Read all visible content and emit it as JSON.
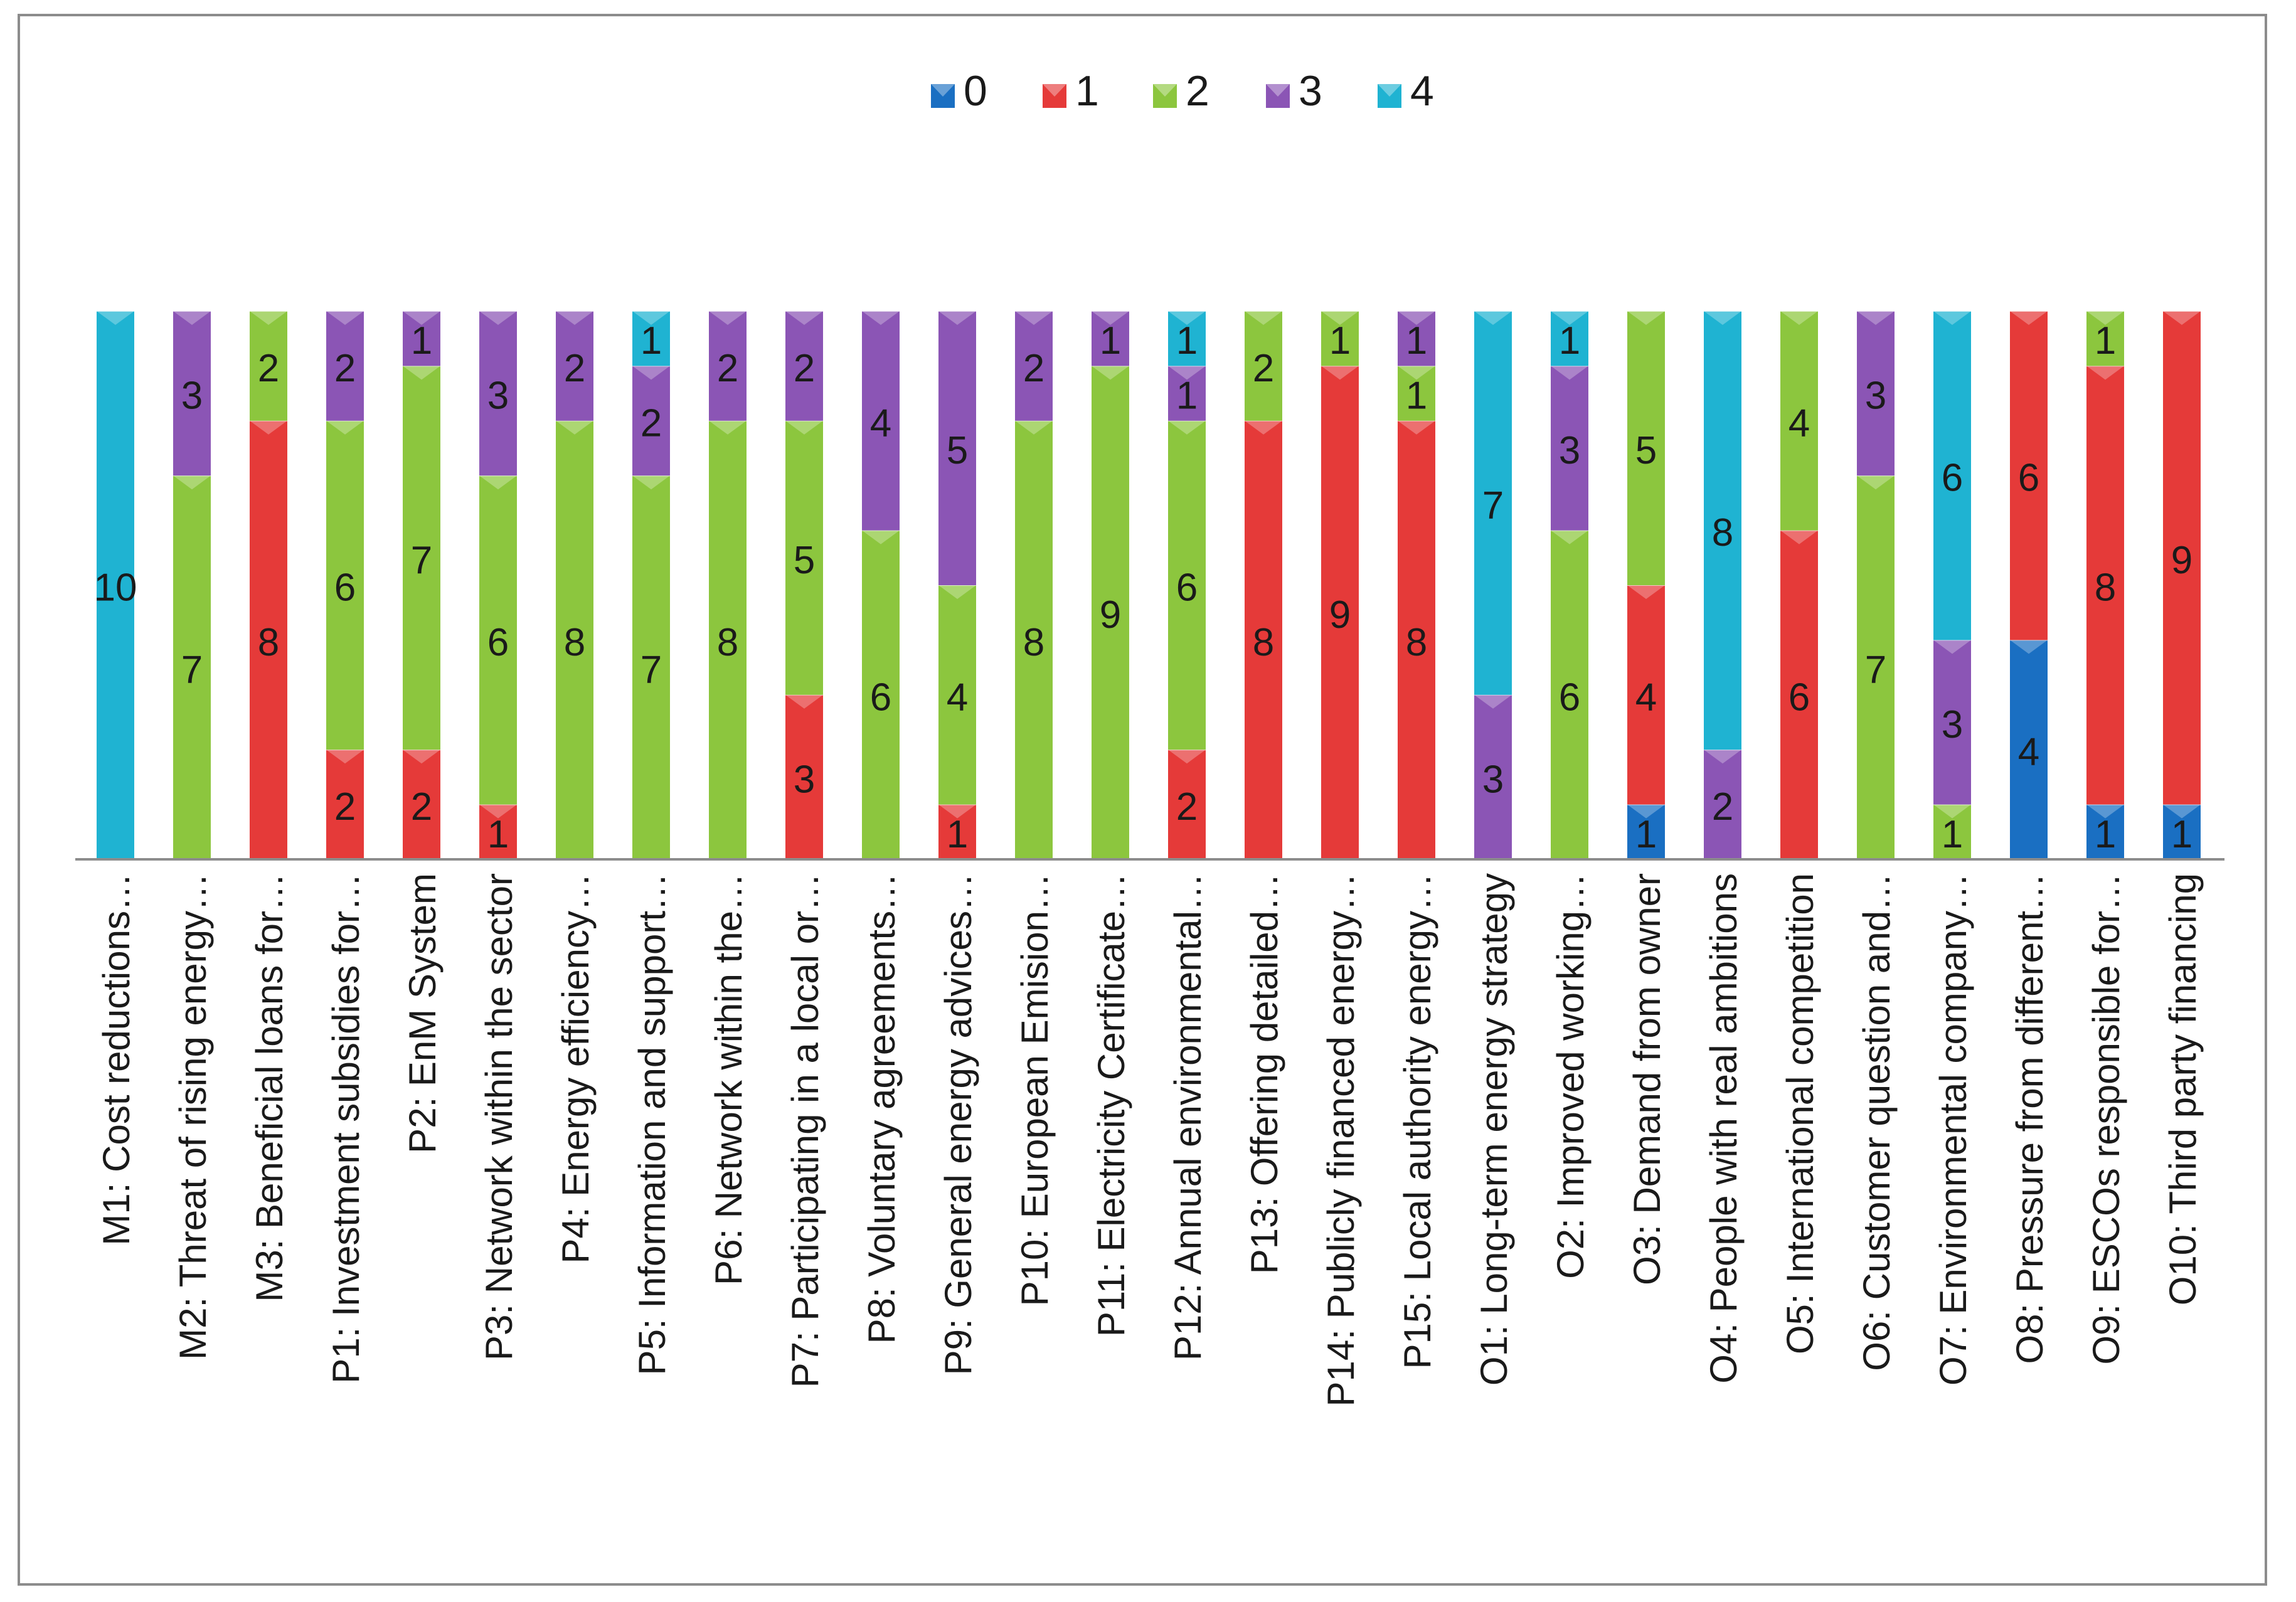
{
  "chart_data": {
    "type": "bar",
    "stacked": true,
    "title": "",
    "xlabel": "",
    "ylabel": "",
    "ylim": [
      0,
      10
    ],
    "grid": false,
    "legend_position": "top-center",
    "colors": {
      "0": "#1a6fc2",
      "1": "#e53a39",
      "2": "#8cc63e",
      "3": "#8b55b5",
      "4": "#1fb3d2"
    },
    "categories": [
      "M1: Cost reductions…",
      "M2: Threat of rising energy…",
      "M3: Beneficial loans for…",
      "P1: Investment subsidies for…",
      "P2: EnM System",
      "P3: Network within the sector",
      "P4: Energy efficiency…",
      "P5: Information and support…",
      "P6: Network within the…",
      "P7: Participating in a local or…",
      "P8: Voluntary agreements…",
      "P9: General energy advices…",
      "P10: European Emision…",
      "P11: Electricity Certificate…",
      "P12: Annual environmental…",
      "P13: Offering detailed…",
      "P14: Publicly financed energy…",
      "P15: Local authority energy…",
      "O1: Long-term energy strategy",
      "O2: Improved working…",
      "O3: Demand from owner",
      "O4: People with real ambitions",
      "O5: International competition",
      "O6: Customer question and…",
      "O7: Environmental company…",
      "O8: Pressure from different…",
      "O9: ESCOs responsible for…",
      "O10: Third party financing"
    ],
    "series": [
      {
        "name": "0",
        "values": [
          0,
          0,
          0,
          0,
          0,
          0,
          0,
          0,
          0,
          0,
          0,
          0,
          0,
          0,
          0,
          0,
          0,
          0,
          0,
          0,
          1,
          0,
          0,
          0,
          0,
          4,
          1,
          1
        ]
      },
      {
        "name": "1",
        "values": [
          0,
          0,
          8,
          2,
          2,
          1,
          0,
          0,
          0,
          3,
          0,
          1,
          0,
          0,
          2,
          8,
          9,
          8,
          0,
          0,
          4,
          0,
          6,
          0,
          0,
          6,
          8,
          9
        ]
      },
      {
        "name": "2",
        "values": [
          0,
          7,
          2,
          6,
          7,
          6,
          8,
          7,
          8,
          5,
          6,
          4,
          8,
          9,
          6,
          2,
          1,
          1,
          0,
          6,
          5,
          0,
          4,
          7,
          1,
          0,
          1,
          0
        ]
      },
      {
        "name": "3",
        "values": [
          0,
          3,
          0,
          2,
          1,
          3,
          2,
          2,
          2,
          2,
          4,
          5,
          2,
          1,
          1,
          0,
          0,
          1,
          3,
          3,
          0,
          2,
          0,
          3,
          3,
          0,
          0,
          0
        ]
      },
      {
        "name": "4",
        "values": [
          10,
          0,
          0,
          0,
          0,
          0,
          0,
          1,
          0,
          0,
          0,
          0,
          0,
          0,
          1,
          0,
          0,
          0,
          7,
          1,
          0,
          8,
          0,
          0,
          6,
          0,
          0,
          0
        ]
      }
    ]
  }
}
